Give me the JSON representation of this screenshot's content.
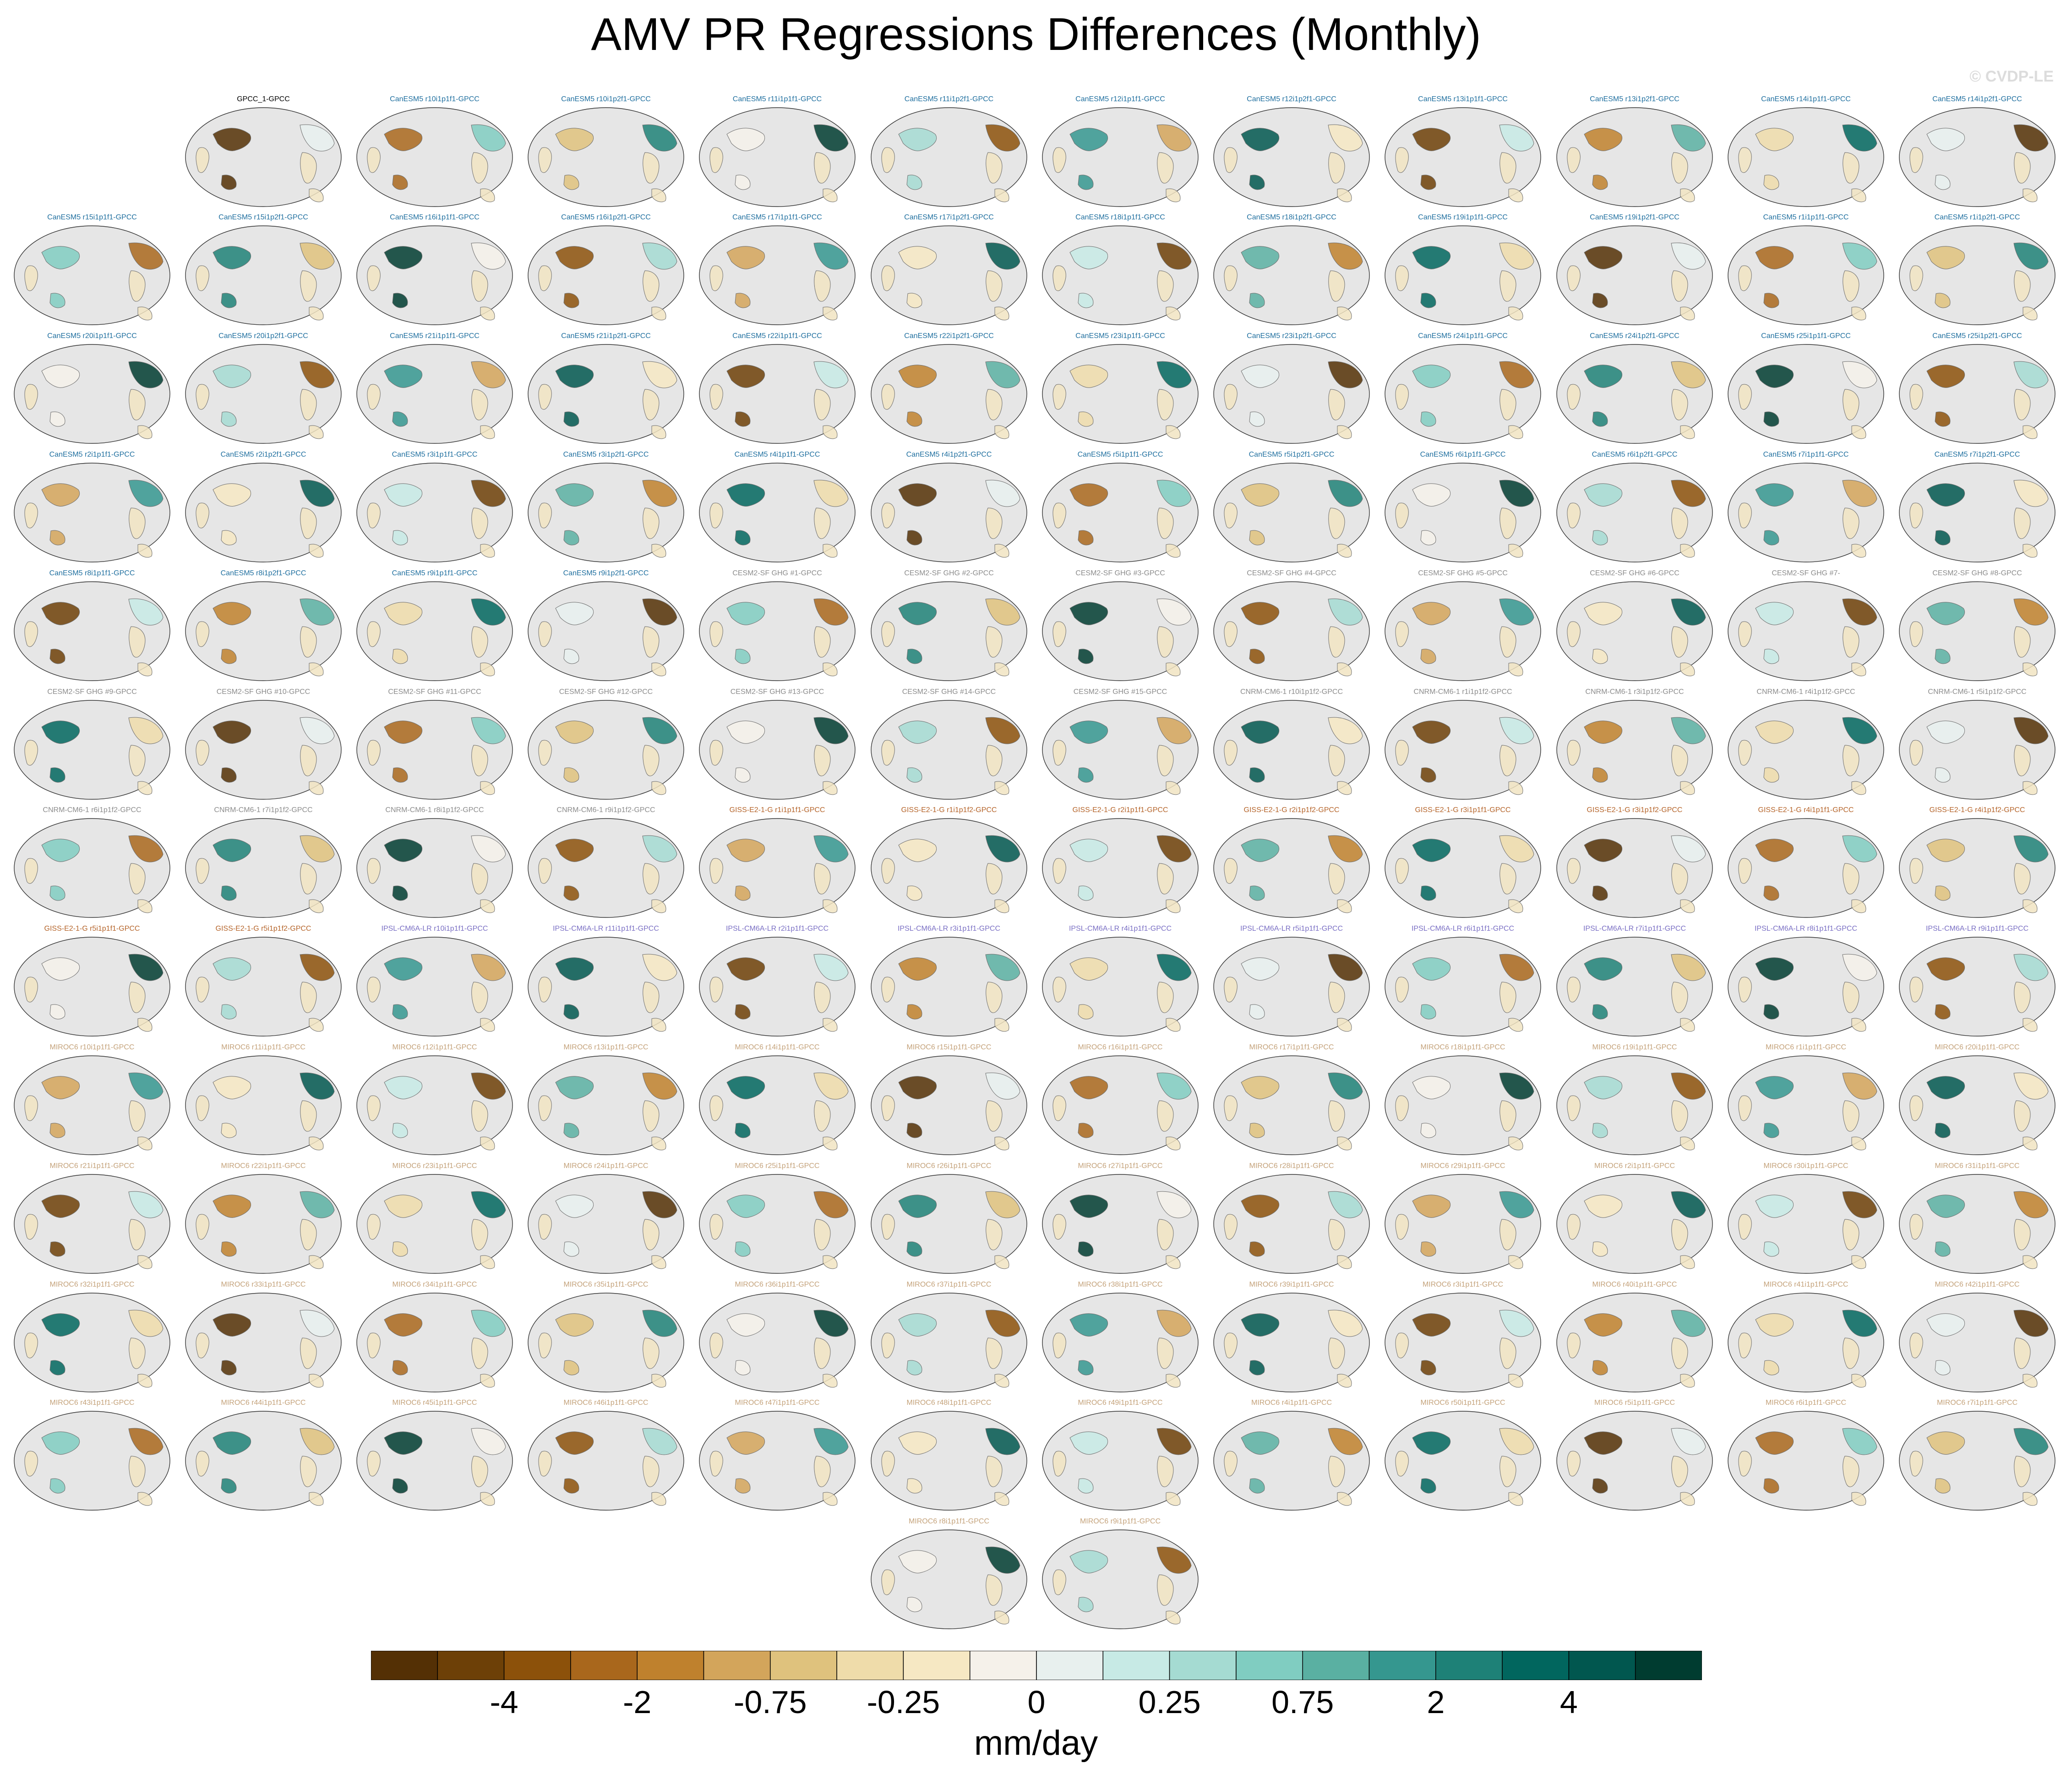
{
  "title": "AMV PR Regressions Differences (Monthly)",
  "watermark": "© CVDP-LE",
  "colors": {
    "ocean": "#e6e6e6",
    "coast": "#6e6e6e",
    "title_default": "#000000",
    "CanESM5": "#1f6f9f",
    "CESM2": "#8c8c8c",
    "CNRM": "#8c8c8c",
    "GISS": "#b5642a",
    "IPSL": "#7a6fc4",
    "MIROC6": "#c4a27a"
  },
  "chart_data": {
    "type": "heatmap",
    "projection": "Robinson (Pacific-centered)",
    "colorbar": {
      "units": "mm/day",
      "colors": [
        "#543005",
        "#6d4007",
        "#8c510a",
        "#a9671c",
        "#bf812d",
        "#d3a55b",
        "#dfc27d",
        "#efdcaa",
        "#f6e8c3",
        "#f5f1ea",
        "#e8f0ee",
        "#c7eae5",
        "#a5dbd2",
        "#80cdc1",
        "#5ab0a2",
        "#35978f",
        "#1e8177",
        "#01665e",
        "#01574f",
        "#003c30"
      ],
      "tick_labels": [
        "-4",
        "-2",
        "-0.75",
        "-0.25",
        "0",
        "0.25",
        "0.75",
        "2",
        "4"
      ]
    },
    "panels": [
      {
        "label": "GPCC_1-GPCC",
        "group": "default"
      },
      {
        "label": "CanESM5 r10i1p1f1-GPCC",
        "group": "CanESM5"
      },
      {
        "label": "CanESM5 r10i1p2f1-GPCC",
        "group": "CanESM5"
      },
      {
        "label": "CanESM5 r11i1p1f1-GPCC",
        "group": "CanESM5"
      },
      {
        "label": "CanESM5 r11i1p2f1-GPCC",
        "group": "CanESM5"
      },
      {
        "label": "CanESM5 r12i1p1f1-GPCC",
        "group": "CanESM5"
      },
      {
        "label": "CanESM5 r12i1p2f1-GPCC",
        "group": "CanESM5"
      },
      {
        "label": "CanESM5 r13i1p1f1-GPCC",
        "group": "CanESM5"
      },
      {
        "label": "CanESM5 r13i1p2f1-GPCC",
        "group": "CanESM5"
      },
      {
        "label": "CanESM5 r14i1p1f1-GPCC",
        "group": "CanESM5"
      },
      {
        "label": "CanESM5 r14i1p2f1-GPCC",
        "group": "CanESM5"
      },
      {
        "label": "CanESM5 r15i1p1f1-GPCC",
        "group": "CanESM5"
      },
      {
        "label": "CanESM5 r15i1p2f1-GPCC",
        "group": "CanESM5"
      },
      {
        "label": "CanESM5 r16i1p1f1-GPCC",
        "group": "CanESM5"
      },
      {
        "label": "CanESM5 r16i1p2f1-GPCC",
        "group": "CanESM5"
      },
      {
        "label": "CanESM5 r17i1p1f1-GPCC",
        "group": "CanESM5"
      },
      {
        "label": "CanESM5 r17i1p2f1-GPCC",
        "group": "CanESM5"
      },
      {
        "label": "CanESM5 r18i1p1f1-GPCC",
        "group": "CanESM5"
      },
      {
        "label": "CanESM5 r18i1p2f1-GPCC",
        "group": "CanESM5"
      },
      {
        "label": "CanESM5 r19i1p1f1-GPCC",
        "group": "CanESM5"
      },
      {
        "label": "CanESM5 r19i1p2f1-GPCC",
        "group": "CanESM5"
      },
      {
        "label": "CanESM5 r1i1p1f1-GPCC",
        "group": "CanESM5"
      },
      {
        "label": "CanESM5 r1i1p2f1-GPCC",
        "group": "CanESM5"
      },
      {
        "label": "CanESM5 r20i1p1f1-GPCC",
        "group": "CanESM5"
      },
      {
        "label": "CanESM5 r20i1p2f1-GPCC",
        "group": "CanESM5"
      },
      {
        "label": "CanESM5 r21i1p1f1-GPCC",
        "group": "CanESM5"
      },
      {
        "label": "CanESM5 r21i1p2f1-GPCC",
        "group": "CanESM5"
      },
      {
        "label": "CanESM5 r22i1p1f1-GPCC",
        "group": "CanESM5"
      },
      {
        "label": "CanESM5 r22i1p2f1-GPCC",
        "group": "CanESM5"
      },
      {
        "label": "CanESM5 r23i1p1f1-GPCC",
        "group": "CanESM5"
      },
      {
        "label": "CanESM5 r23i1p2f1-GPCC",
        "group": "CanESM5"
      },
      {
        "label": "CanESM5 r24i1p1f1-GPCC",
        "group": "CanESM5"
      },
      {
        "label": "CanESM5 r24i1p2f1-GPCC",
        "group": "CanESM5"
      },
      {
        "label": "CanESM5 r25i1p1f1-GPCC",
        "group": "CanESM5"
      },
      {
        "label": "CanESM5 r25i1p2f1-GPCC",
        "group": "CanESM5"
      },
      {
        "label": "CanESM5 r2i1p1f1-GPCC",
        "group": "CanESM5"
      },
      {
        "label": "CanESM5 r2i1p2f1-GPCC",
        "group": "CanESM5"
      },
      {
        "label": "CanESM5 r3i1p1f1-GPCC",
        "group": "CanESM5"
      },
      {
        "label": "CanESM5 r3i1p2f1-GPCC",
        "group": "CanESM5"
      },
      {
        "label": "CanESM5 r4i1p1f1-GPCC",
        "group": "CanESM5"
      },
      {
        "label": "CanESM5 r4i1p2f1-GPCC",
        "group": "CanESM5"
      },
      {
        "label": "CanESM5 r5i1p1f1-GPCC",
        "group": "CanESM5"
      },
      {
        "label": "CanESM5 r5i1p2f1-GPCC",
        "group": "CanESM5"
      },
      {
        "label": "CanESM5 r6i1p1f1-GPCC",
        "group": "CanESM5"
      },
      {
        "label": "CanESM5 r6i1p2f1-GPCC",
        "group": "CanESM5"
      },
      {
        "label": "CanESM5 r7i1p1f1-GPCC",
        "group": "CanESM5"
      },
      {
        "label": "CanESM5 r7i1p2f1-GPCC",
        "group": "CanESM5"
      },
      {
        "label": "CanESM5 r8i1p1f1-GPCC",
        "group": "CanESM5"
      },
      {
        "label": "CanESM5 r8i1p2f1-GPCC",
        "group": "CanESM5"
      },
      {
        "label": "CanESM5 r9i1p1f1-GPCC",
        "group": "CanESM5"
      },
      {
        "label": "CanESM5 r9i1p2f1-GPCC",
        "group": "CanESM5"
      },
      {
        "label": "CESM2-SF GHG #1-GPCC",
        "group": "CESM2"
      },
      {
        "label": "CESM2-SF GHG #2-GPCC",
        "group": "CESM2"
      },
      {
        "label": "CESM2-SF GHG #3-GPCC",
        "group": "CESM2"
      },
      {
        "label": "CESM2-SF GHG #4-GPCC",
        "group": "CESM2"
      },
      {
        "label": "CESM2-SF GHG #5-GPCC",
        "group": "CESM2"
      },
      {
        "label": "CESM2-SF GHG #6-GPCC",
        "group": "CESM2"
      },
      {
        "label": "CESM2-SF GHG #7-",
        "group": "CESM2"
      },
      {
        "label": "CESM2-SF GHG #8-GPCC",
        "group": "CESM2"
      },
      {
        "label": "CESM2-SF GHG #9-GPCC",
        "group": "CESM2"
      },
      {
        "label": "CESM2-SF GHG #10-GPCC",
        "group": "CESM2"
      },
      {
        "label": "CESM2-SF GHG #11-GPCC",
        "group": "CESM2"
      },
      {
        "label": "CESM2-SF GHG #12-GPCC",
        "group": "CESM2"
      },
      {
        "label": "CESM2-SF GHG #13-GPCC",
        "group": "CESM2"
      },
      {
        "label": "CESM2-SF GHG #14-GPCC",
        "group": "CESM2"
      },
      {
        "label": "CESM2-SF GHG #15-GPCC",
        "group": "CESM2"
      },
      {
        "label": "CNRM-CM6-1 r10i1p1f2-GPCC",
        "group": "CNRM"
      },
      {
        "label": "CNRM-CM6-1 r1i1p1f2-GPCC",
        "group": "CNRM"
      },
      {
        "label": "CNRM-CM6-1 r3i1p1f2-GPCC",
        "group": "CNRM"
      },
      {
        "label": "CNRM-CM6-1 r4i1p1f2-GPCC",
        "group": "CNRM"
      },
      {
        "label": "CNRM-CM6-1 r5i1p1f2-GPCC",
        "group": "CNRM"
      },
      {
        "label": "CNRM-CM6-1 r6i1p1f2-GPCC",
        "group": "CNRM"
      },
      {
        "label": "CNRM-CM6-1 r7i1p1f2-GPCC",
        "group": "CNRM"
      },
      {
        "label": "CNRM-CM6-1 r8i1p1f2-GPCC",
        "group": "CNRM"
      },
      {
        "label": "CNRM-CM6-1 r9i1p1f2-GPCC",
        "group": "CNRM"
      },
      {
        "label": "GISS-E2-1-G r1i1p1f1-GPCC",
        "group": "GISS"
      },
      {
        "label": "GISS-E2-1-G r1i1p1f2-GPCC",
        "group": "GISS"
      },
      {
        "label": "GISS-E2-1-G r2i1p1f1-GPCC",
        "group": "GISS"
      },
      {
        "label": "GISS-E2-1-G r2i1p1f2-GPCC",
        "group": "GISS"
      },
      {
        "label": "GISS-E2-1-G r3i1p1f1-GPCC",
        "group": "GISS"
      },
      {
        "label": "GISS-E2-1-G r3i1p1f2-GPCC",
        "group": "GISS"
      },
      {
        "label": "GISS-E2-1-G r4i1p1f1-GPCC",
        "group": "GISS"
      },
      {
        "label": "GISS-E2-1-G r4i1p1f2-GPCC",
        "group": "GISS"
      },
      {
        "label": "GISS-E2-1-G r5i1p1f1-GPCC",
        "group": "GISS"
      },
      {
        "label": "GISS-E2-1-G r5i1p1f2-GPCC",
        "group": "GISS"
      },
      {
        "label": "IPSL-CM6A-LR r10i1p1f1-GPCC",
        "group": "IPSL"
      },
      {
        "label": "IPSL-CM6A-LR r11i1p1f1-GPCC",
        "group": "IPSL"
      },
      {
        "label": "IPSL-CM6A-LR r2i1p1f1-GPCC",
        "group": "IPSL"
      },
      {
        "label": "IPSL-CM6A-LR r3i1p1f1-GPCC",
        "group": "IPSL"
      },
      {
        "label": "IPSL-CM6A-LR r4i1p1f1-GPCC",
        "group": "IPSL"
      },
      {
        "label": "IPSL-CM6A-LR r5i1p1f1-GPCC",
        "group": "IPSL"
      },
      {
        "label": "IPSL-CM6A-LR r6i1p1f1-GPCC",
        "group": "IPSL"
      },
      {
        "label": "IPSL-CM6A-LR r7i1p1f1-GPCC",
        "group": "IPSL"
      },
      {
        "label": "IPSL-CM6A-LR r8i1p1f1-GPCC",
        "group": "IPSL"
      },
      {
        "label": "IPSL-CM6A-LR r9i1p1f1-GPCC",
        "group": "IPSL"
      },
      {
        "label": "MIROC6 r10i1p1f1-GPCC",
        "group": "MIROC6"
      },
      {
        "label": "MIROC6 r11i1p1f1-GPCC",
        "group": "MIROC6"
      },
      {
        "label": "MIROC6 r12i1p1f1-GPCC",
        "group": "MIROC6"
      },
      {
        "label": "MIROC6 r13i1p1f1-GPCC",
        "group": "MIROC6"
      },
      {
        "label": "MIROC6 r14i1p1f1-GPCC",
        "group": "MIROC6"
      },
      {
        "label": "MIROC6 r15i1p1f1-GPCC",
        "group": "MIROC6"
      },
      {
        "label": "MIROC6 r16i1p1f1-GPCC",
        "group": "MIROC6"
      },
      {
        "label": "MIROC6 r17i1p1f1-GPCC",
        "group": "MIROC6"
      },
      {
        "label": "MIROC6 r18i1p1f1-GPCC",
        "group": "MIROC6"
      },
      {
        "label": "MIROC6 r19i1p1f1-GPCC",
        "group": "MIROC6"
      },
      {
        "label": "MIROC6 r1i1p1f1-GPCC",
        "group": "MIROC6"
      },
      {
        "label": "MIROC6 r20i1p1f1-GPCC",
        "group": "MIROC6"
      },
      {
        "label": "MIROC6 r21i1p1f1-GPCC",
        "group": "MIROC6"
      },
      {
        "label": "MIROC6 r22i1p1f1-GPCC",
        "group": "MIROC6"
      },
      {
        "label": "MIROC6 r23i1p1f1-GPCC",
        "group": "MIROC6"
      },
      {
        "label": "MIROC6 r24i1p1f1-GPCC",
        "group": "MIROC6"
      },
      {
        "label": "MIROC6 r25i1p1f1-GPCC",
        "group": "MIROC6"
      },
      {
        "label": "MIROC6 r26i1p1f1-GPCC",
        "group": "MIROC6"
      },
      {
        "label": "MIROC6 r27i1p1f1-GPCC",
        "group": "MIROC6"
      },
      {
        "label": "MIROC6 r28i1p1f1-GPCC",
        "group": "MIROC6"
      },
      {
        "label": "MIROC6 r29i1p1f1-GPCC",
        "group": "MIROC6"
      },
      {
        "label": "MIROC6 r2i1p1f1-GPCC",
        "group": "MIROC6"
      },
      {
        "label": "MIROC6 r30i1p1f1-GPCC",
        "group": "MIROC6"
      },
      {
        "label": "MIROC6 r31i1p1f1-GPCC",
        "group": "MIROC6"
      },
      {
        "label": "MIROC6 r32i1p1f1-GPCC",
        "group": "MIROC6"
      },
      {
        "label": "MIROC6 r33i1p1f1-GPCC",
        "group": "MIROC6"
      },
      {
        "label": "MIROC6 r34i1p1f1-GPCC",
        "group": "MIROC6"
      },
      {
        "label": "MIROC6 r35i1p1f1-GPCC",
        "group": "MIROC6"
      },
      {
        "label": "MIROC6 r36i1p1f1-GPCC",
        "group": "MIROC6"
      },
      {
        "label": "MIROC6 r37i1p1f1-GPCC",
        "group": "MIROC6"
      },
      {
        "label": "MIROC6 r38i1p1f1-GPCC",
        "group": "MIROC6"
      },
      {
        "label": "MIROC6 r39i1p1f1-GPCC",
        "group": "MIROC6"
      },
      {
        "label": "MIROC6 r3i1p1f1-GPCC",
        "group": "MIROC6"
      },
      {
        "label": "MIROC6 r40i1p1f1-GPCC",
        "group": "MIROC6"
      },
      {
        "label": "MIROC6 r41i1p1f1-GPCC",
        "group": "MIROC6"
      },
      {
        "label": "MIROC6 r42i1p1f1-GPCC",
        "group": "MIROC6"
      },
      {
        "label": "MIROC6 r43i1p1f1-GPCC",
        "group": "MIROC6"
      },
      {
        "label": "MIROC6 r44i1p1f1-GPCC",
        "group": "MIROC6"
      },
      {
        "label": "MIROC6 r45i1p1f1-GPCC",
        "group": "MIROC6"
      },
      {
        "label": "MIROC6 r46i1p1f1-GPCC",
        "group": "MIROC6"
      },
      {
        "label": "MIROC6 r47i1p1f1-GPCC",
        "group": "MIROC6"
      },
      {
        "label": "MIROC6 r48i1p1f1-GPCC",
        "group": "MIROC6"
      },
      {
        "label": "MIROC6 r49i1p1f1-GPCC",
        "group": "MIROC6"
      },
      {
        "label": "MIROC6 r4i1p1f1-GPCC",
        "group": "MIROC6"
      },
      {
        "label": "MIROC6 r50i1p1f1-GPCC",
        "group": "MIROC6"
      },
      {
        "label": "MIROC6 r5i1p1f1-GPCC",
        "group": "MIROC6"
      },
      {
        "label": "MIROC6 r6i1p1f1-GPCC",
        "group": "MIROC6"
      },
      {
        "label": "MIROC6 r7i1p1f1-GPCC",
        "group": "MIROC6"
      },
      {
        "label": "MIROC6 r8i1p1f1-GPCC",
        "group": "MIROC6"
      },
      {
        "label": "MIROC6 r9i1p1f1-GPCC",
        "group": "MIROC6"
      }
    ]
  }
}
